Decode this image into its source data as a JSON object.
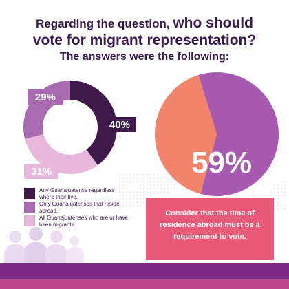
{
  "header": {
    "line1_small": "Regarding the question,",
    "line1_big": "who should",
    "line2": "vote for migrant representation?",
    "line3": "The answers were the following:"
  },
  "colors": {
    "dark_purple": "#3d1a4a",
    "mid_purple": "#a86ab0",
    "light_pink": "#e8b8dc",
    "salmon": "#f2846c",
    "pie_purple": "#a65ab0",
    "coral": "#e85a78",
    "band": "#7a2a82"
  },
  "chart_data": [
    {
      "type": "pie",
      "style": "donut",
      "labels": [
        "Any Guanajuatense regardless where their live.",
        "Only Guanajuatenses that reside abroad.",
        "All Guanajuatenses who are or have been migrants."
      ],
      "values": [
        40,
        29,
        31
      ],
      "value_labels": [
        "40%",
        "29%",
        "31%"
      ],
      "colors": [
        "#3d1a4a",
        "#a86ab0",
        "#e8b8dc"
      ],
      "legend_position": "bottom-left"
    },
    {
      "type": "pie",
      "values": [
        59,
        41
      ],
      "value_labels": [
        "59%",
        ""
      ],
      "colors": [
        "#a65ab0",
        "#f2846c"
      ],
      "annotation": "Consider that the time of residence abroad must be a requirement to vote."
    }
  ]
}
